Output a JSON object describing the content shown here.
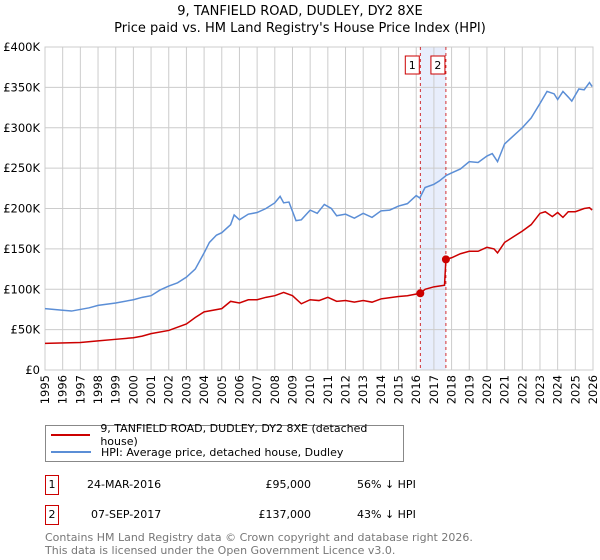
{
  "title": "9, TANFIELD ROAD, DUDLEY, DY2 8XE",
  "subtitle": "Price paid vs. HM Land Registry's House Price Index (HPI)",
  "chart_data": {
    "type": "line",
    "xlim": [
      1995,
      2026
    ],
    "ylim": [
      0,
      400000
    ],
    "yticks": [
      0,
      50000,
      100000,
      150000,
      200000,
      250000,
      300000,
      350000,
      400000
    ],
    "ytick_labels": [
      "£0",
      "£50K",
      "£100K",
      "£150K",
      "£200K",
      "£250K",
      "£300K",
      "£350K",
      "£400K"
    ],
    "xticks": [
      1995,
      1996,
      1997,
      1998,
      1999,
      2000,
      2001,
      2002,
      2003,
      2004,
      2005,
      2006,
      2007,
      2008,
      2009,
      2010,
      2011,
      2012,
      2013,
      2014,
      2015,
      2016,
      2017,
      2018,
      2019,
      2020,
      2021,
      2022,
      2023,
      2024,
      2025,
      2026
    ],
    "grid": true,
    "shaded_range": [
      2016.23,
      2017.68
    ],
    "colors": {
      "property": "#cc0000",
      "hpi": "#5b8ed6",
      "shade": "#e8eefc"
    },
    "series": [
      {
        "name": "9, TANFIELD ROAD, DUDLEY, DY2 8XE (detached house)",
        "key": "property",
        "x": [
          1995,
          1997,
          1998,
          1999,
          2000,
          2000.5,
          2001,
          2002,
          2003,
          2003.5,
          2004,
          2005,
          2005.5,
          2006,
          2006.5,
          2007,
          2007.5,
          2008,
          2008.5,
          2009,
          2009.5,
          2010,
          2010.5,
          2011,
          2011.5,
          2012,
          2012.5,
          2013,
          2013.5,
          2014,
          2015,
          2015.5,
          2016.23,
          2016.5,
          2017,
          2017.6,
          2017.68,
          2018,
          2018.5,
          2019,
          2019.5,
          2020,
          2020.4,
          2020.6,
          2021,
          2021.5,
          2022,
          2022.5,
          2023,
          2023.3,
          2023.7,
          2024,
          2024.3,
          2024.6,
          2025,
          2025.5,
          2025.8,
          2025.95
        ],
        "y": [
          33000,
          34000,
          36000,
          38000,
          40000,
          42000,
          45000,
          49000,
          57000,
          65000,
          72000,
          76000,
          85000,
          83000,
          87000,
          87000,
          90000,
          92000,
          96000,
          92000,
          82000,
          87000,
          86000,
          90000,
          85000,
          86000,
          84000,
          86000,
          84000,
          88000,
          91000,
          92000,
          95000,
          100000,
          103000,
          105000,
          137000,
          139000,
          144000,
          147000,
          147000,
          152000,
          150000,
          145000,
          158000,
          165000,
          172000,
          180000,
          194000,
          196000,
          190000,
          195000,
          189000,
          196000,
          196000,
          200000,
          201000,
          198000
        ]
      },
      {
        "name": "HPI: Average price, detached house, Dudley",
        "key": "hpi",
        "x": [
          1995,
          1996,
          1996.5,
          1997,
          1997.5,
          1998,
          1999,
          2000,
          2000.5,
          2001,
          2001.5,
          2002,
          2002.5,
          2003,
          2003.5,
          2004,
          2004.3,
          2004.7,
          2005,
          2005.5,
          2005.7,
          2006,
          2006.5,
          2007,
          2007.5,
          2008,
          2008.3,
          2008.5,
          2008.8,
          2009.2,
          2009.5,
          2010,
          2010.4,
          2010.8,
          2011.2,
          2011.5,
          2012,
          2012.5,
          2013,
          2013.5,
          2014,
          2014.5,
          2015,
          2015.5,
          2016,
          2016.2,
          2016.5,
          2017,
          2017.3,
          2017.7,
          2018,
          2018.5,
          2019,
          2019.5,
          2020,
          2020.3,
          2020.6,
          2021,
          2021.5,
          2022,
          2022.5,
          2023,
          2023.4,
          2023.8,
          2024,
          2024.3,
          2024.6,
          2024.8,
          2025.2,
          2025.5,
          2025.8,
          2025.95
        ],
        "y": [
          76000,
          74000,
          73000,
          75000,
          77000,
          80000,
          83000,
          87000,
          90000,
          92000,
          99000,
          104000,
          108000,
          115000,
          125000,
          145000,
          158000,
          167000,
          170000,
          180000,
          192000,
          186000,
          193000,
          195000,
          200000,
          207000,
          215000,
          207000,
          208000,
          185000,
          186000,
          198000,
          194000,
          205000,
          200000,
          191000,
          193000,
          188000,
          194000,
          189000,
          197000,
          198000,
          203000,
          206000,
          216000,
          213000,
          226000,
          230000,
          234000,
          241000,
          244000,
          249000,
          258000,
          257000,
          265000,
          268000,
          258000,
          280000,
          290000,
          300000,
          312000,
          330000,
          345000,
          342000,
          335000,
          345000,
          338000,
          333000,
          348000,
          347000,
          356000,
          351000
        ]
      }
    ],
    "sales": [
      {
        "id": "1",
        "x": 2016.23,
        "y": 95000
      },
      {
        "id": "2",
        "x": 2017.68,
        "y": 137000
      }
    ]
  },
  "table": [
    {
      "id": "1",
      "date": "24-MAR-2016",
      "price": "£95,000",
      "hpi": "56% ↓ HPI"
    },
    {
      "id": "2",
      "date": "07-SEP-2017",
      "price": "£137,000",
      "hpi": "43% ↓ HPI"
    }
  ],
  "footer": [
    "Contains HM Land Registry data © Crown copyright and database right 2026.",
    "This data is licensed under the Open Government Licence v3.0."
  ]
}
